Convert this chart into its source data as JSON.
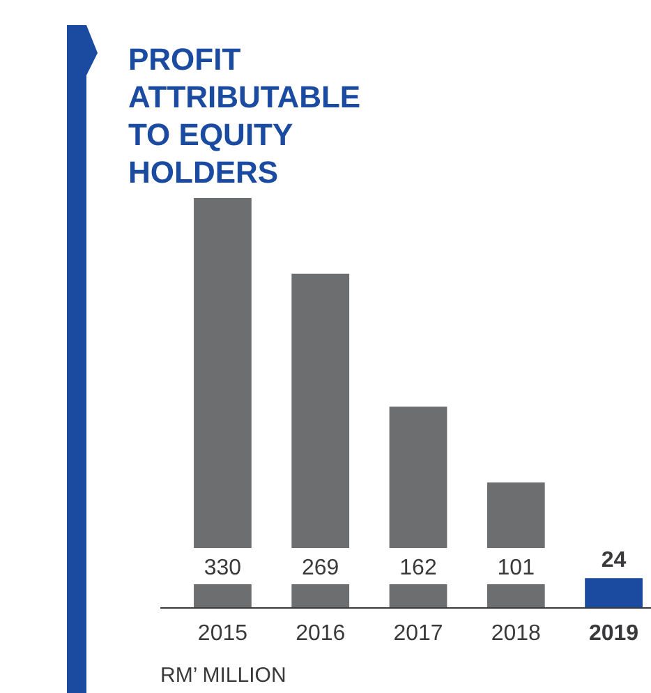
{
  "chart_data": {
    "type": "bar",
    "title": "PROFIT ATTRIBUTABLE TO EQUITY HOLDERS",
    "xlabel": "RM’ MILLION",
    "categories": [
      "2015",
      "2016",
      "2017",
      "2018",
      "2019"
    ],
    "values": [
      330,
      269,
      162,
      101,
      24
    ],
    "colors": [
      "#6d6e70",
      "#6d6e70",
      "#6d6e70",
      "#6d6e70",
      "#1a4ba0"
    ],
    "data_labels": true
  }
}
